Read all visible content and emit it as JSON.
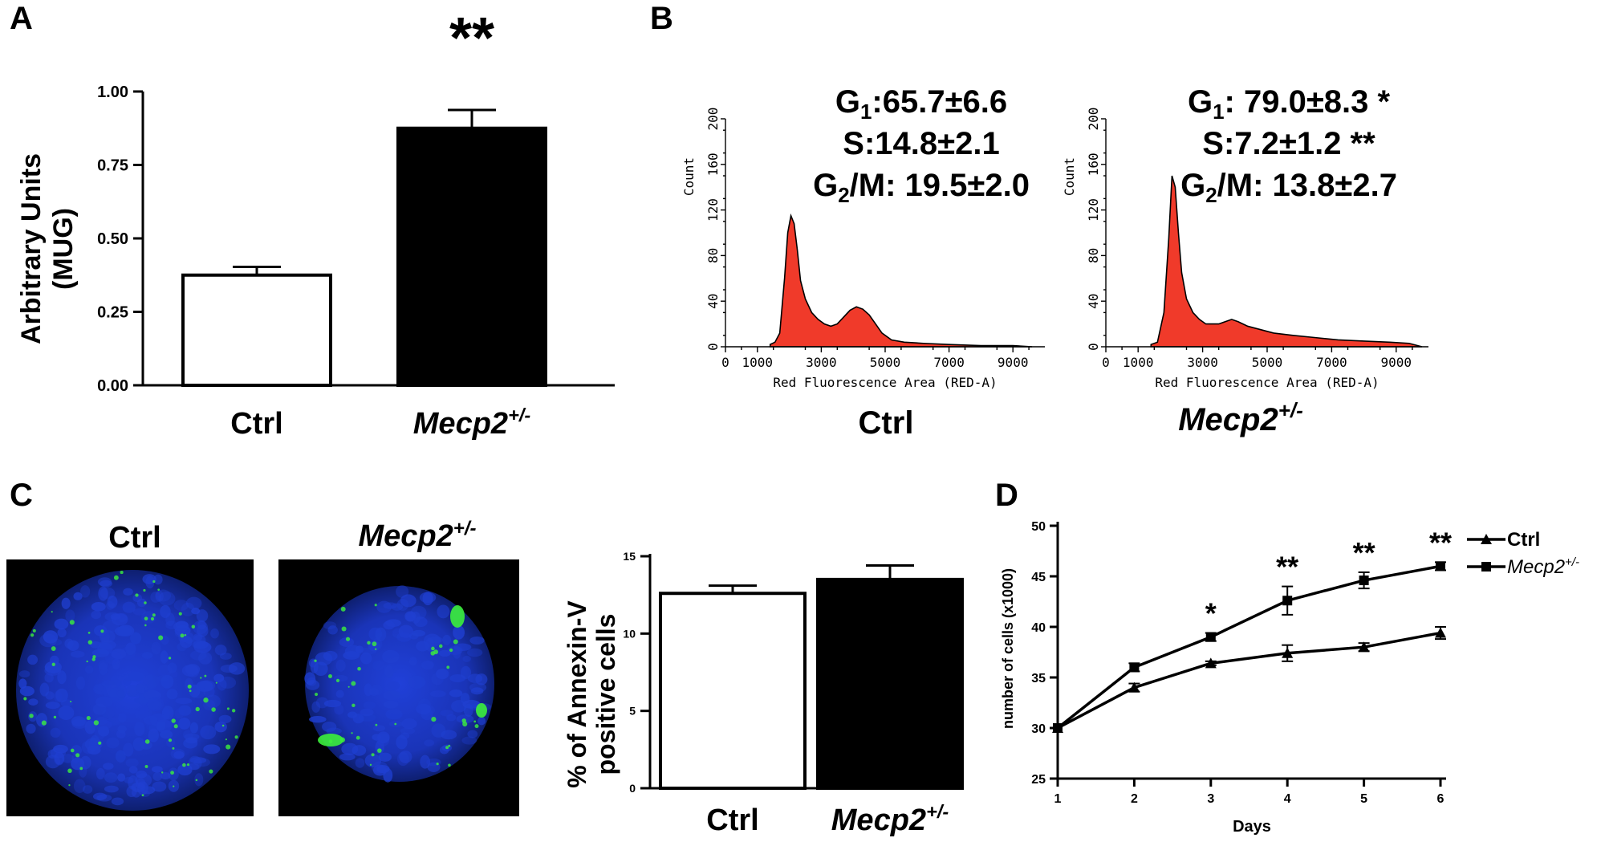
{
  "panel_labels": {
    "a": "A",
    "b": "B",
    "c": "C",
    "d": "D"
  },
  "colors": {
    "histogram_fill": "#f03a2a",
    "confocal_bg": "#000000",
    "nuclei": "#1f3fd0",
    "annexin": "#3cf03c"
  },
  "chart_data": [
    {
      "panel": "A",
      "type": "bar",
      "categories": [
        "Ctrl",
        "Mecp2"
      ],
      "category_superscripts": [
        "",
        "+/-"
      ],
      "values": [
        0.375,
        0.875
      ],
      "errors": [
        0.028,
        0.062
      ],
      "fills": [
        "#ffffff",
        "#000000"
      ],
      "ylabel_lines": [
        "Arbitrary Units",
        "(MUG)"
      ],
      "yticks": [
        "0.00",
        "0.25",
        "0.50",
        "0.75",
        "1.00"
      ],
      "ylim": [
        0,
        1.0
      ],
      "significance": "**"
    },
    {
      "panel": "B",
      "type": "area",
      "title": "Ctrl",
      "title_superscript": "",
      "xlabel": "Red Fluorescence Area (RED-A)",
      "ylabel": "Count",
      "xticks": [
        "0",
        "1000",
        "3000",
        "5000",
        "7000",
        "9000"
      ],
      "yticks": [
        "0",
        "40",
        "80",
        "120",
        "160",
        "200"
      ],
      "xlim": [
        0,
        10000
      ],
      "ylim": [
        0,
        200
      ],
      "x": [
        1400,
        1550,
        1700,
        1850,
        1950,
        2050,
        2150,
        2250,
        2350,
        2500,
        2700,
        2900,
        3100,
        3300,
        3500,
        3700,
        3900,
        4100,
        4300,
        4500,
        4700,
        4900,
        5200,
        5600,
        6200,
        7000,
        8000,
        9000,
        9600
      ],
      "counts": [
        2,
        4,
        12,
        60,
        100,
        115,
        108,
        85,
        58,
        42,
        30,
        24,
        20,
        18,
        20,
        26,
        32,
        35,
        33,
        28,
        20,
        12,
        6,
        4,
        3,
        2,
        1,
        1,
        0
      ],
      "stats": [
        {
          "label": "G",
          "sub": "1",
          "text": ":65.7±6.6"
        },
        {
          "label": "",
          "sub": "",
          "text": "S:14.8±2.1"
        },
        {
          "label": "G",
          "sub": "2",
          "text": "/M: 19.5±2.0"
        }
      ]
    },
    {
      "panel": "B",
      "type": "area",
      "title": "Mecp2",
      "title_superscript": "+/-",
      "xlabel": "Red Fluorescence Area (RED-A)",
      "ylabel": "Count",
      "xticks": [
        "0",
        "1000",
        "3000",
        "5000",
        "7000",
        "9000"
      ],
      "yticks": [
        "0",
        "40",
        "80",
        "120",
        "160",
        "200"
      ],
      "xlim": [
        0,
        10000
      ],
      "ylim": [
        0,
        200
      ],
      "x": [
        1400,
        1600,
        1800,
        1950,
        2050,
        2150,
        2250,
        2350,
        2500,
        2700,
        2900,
        3100,
        3300,
        3500,
        3700,
        3900,
        4100,
        4400,
        4800,
        5200,
        5800,
        6500,
        7200,
        8000,
        8800,
        9400,
        9800
      ],
      "counts": [
        2,
        4,
        30,
        95,
        150,
        140,
        100,
        65,
        42,
        30,
        24,
        20,
        20,
        20,
        22,
        24,
        22,
        18,
        15,
        12,
        10,
        8,
        6,
        5,
        4,
        3,
        0
      ],
      "stats": [
        {
          "label": "G",
          "sub": "1",
          "text": ": 79.0±8.3 *"
        },
        {
          "label": "",
          "sub": "",
          "text": "S:7.2±1.2 **"
        },
        {
          "label": "G",
          "sub": "2",
          "text": "/M: 13.8±2.7"
        }
      ]
    },
    {
      "panel": "C",
      "type": "bar",
      "categories": [
        "Ctrl",
        "Mecp2"
      ],
      "category_superscripts": [
        "",
        "+/-"
      ],
      "values": [
        12.6,
        13.5
      ],
      "errors": [
        0.5,
        0.9
      ],
      "fills": [
        "#ffffff",
        "#000000"
      ],
      "ylabel_lines": [
        "% of Annexin-V",
        "positive cells"
      ],
      "yticks": [
        "0",
        "5",
        "10",
        "15"
      ],
      "ylim": [
        0,
        15
      ],
      "image_titles": [
        {
          "text": "Ctrl",
          "sup": ""
        },
        {
          "text": "Mecp2",
          "sup": "+/-"
        }
      ]
    },
    {
      "panel": "D",
      "type": "line",
      "x": [
        1,
        2,
        3,
        4,
        5,
        6
      ],
      "xlabel": "Days",
      "ylabel": "number of cells (x1000)",
      "xticks": [
        "1",
        "2",
        "3",
        "4",
        "5",
        "6"
      ],
      "yticks": [
        "25",
        "30",
        "35",
        "40",
        "45",
        "50"
      ],
      "xlim": [
        1,
        6
      ],
      "ylim": [
        25,
        50
      ],
      "series": [
        {
          "name": "Ctrl",
          "name_superscript": "",
          "marker": "triangle",
          "values": [
            30.0,
            34.0,
            36.4,
            37.4,
            38.0,
            39.4
          ],
          "errors": [
            0,
            0.4,
            0.2,
            0.8,
            0.4,
            0.6
          ]
        },
        {
          "name": "Mecp2",
          "name_superscript": "+/-",
          "marker": "square",
          "values": [
            30.0,
            36.0,
            39.0,
            42.6,
            44.6,
            46.0
          ],
          "errors": [
            0,
            0.4,
            0.4,
            1.4,
            0.8,
            0.4
          ]
        }
      ],
      "significance": [
        {
          "x": 3,
          "label": "*"
        },
        {
          "x": 4,
          "label": "**"
        },
        {
          "x": 5,
          "label": "**"
        },
        {
          "x": 6,
          "label": "**"
        }
      ]
    }
  ]
}
